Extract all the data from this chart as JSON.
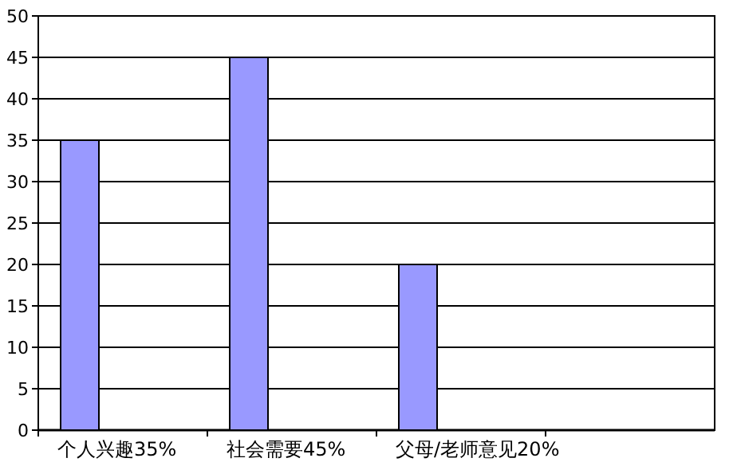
{
  "chart_data": {
    "type": "bar",
    "categories": [
      "个人兴趣35%",
      "社会需要45%",
      "父母/老师意见20%",
      null
    ],
    "values": [
      35,
      45,
      20,
      null
    ],
    "color": "#9999ff",
    "ylim": [
      0,
      50
    ],
    "yticks": [
      0,
      5,
      10,
      15,
      20,
      25,
      30,
      35,
      40,
      45,
      50
    ],
    "grid": "y"
  }
}
